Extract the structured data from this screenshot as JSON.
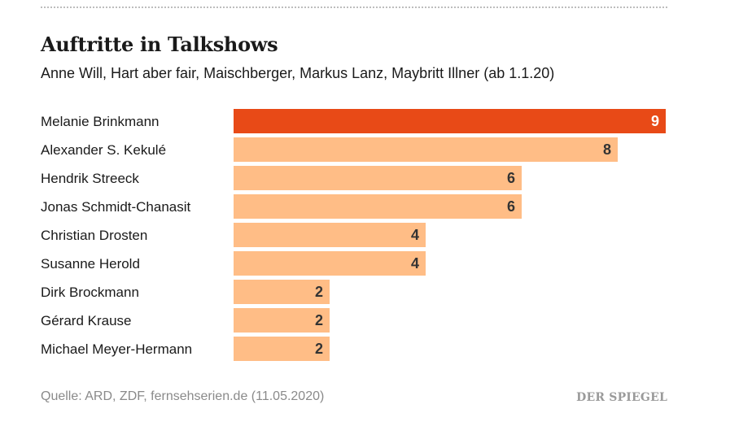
{
  "header": {
    "title": "Auftritte in Talkshows",
    "subtitle": "Anne Will, Hart aber fair, Maischberger, Markus Lanz, Maybritt Illner (ab 1.1.20)"
  },
  "chart_data": {
    "type": "bar",
    "orientation": "horizontal",
    "title": "Auftritte in Talkshows",
    "subtitle": "Anne Will, Hart aber fair, Maischberger, Markus Lanz, Maybritt Illner (ab 1.1.20)",
    "categories": [
      "Melanie Brinkmann",
      "Alexander S. Kekulé",
      "Hendrik Streeck",
      "Jonas Schmidt-Chanasit",
      "Christian Drosten",
      "Susanne Herold",
      "Dirk Brockmann",
      "Gérard Krause",
      "Michael Meyer-Hermann"
    ],
    "values": [
      9,
      8,
      6,
      6,
      4,
      4,
      2,
      2,
      2
    ],
    "highlight_index": 0,
    "xlim": [
      0,
      9
    ],
    "grid": false,
    "data_labels": true,
    "colors": {
      "highlight": "#e84a17",
      "bar": "#ffbd86",
      "label_dark": "#333333",
      "label_light": "#ffffff"
    }
  },
  "footer": {
    "source": "Quelle: ARD, ZDF, fernsehserien.de (11.05.2020)",
    "brand": "DER SPIEGEL"
  }
}
